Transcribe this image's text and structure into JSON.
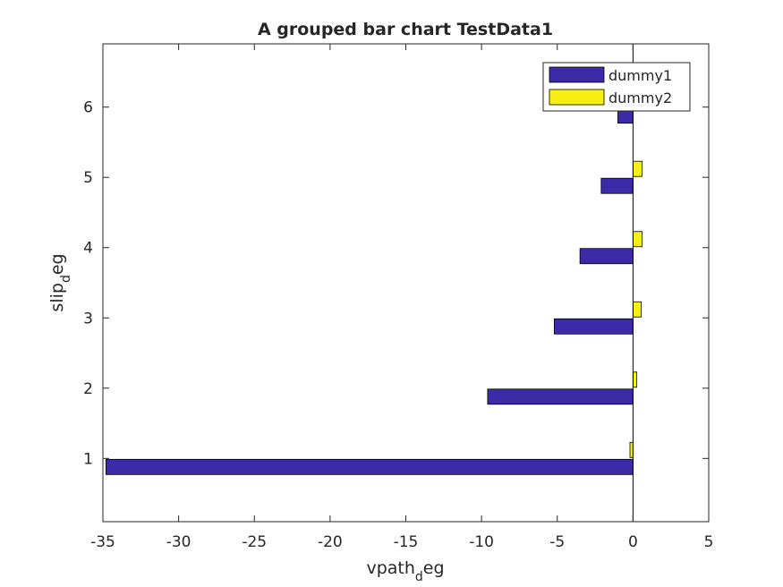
{
  "chart_data": {
    "type": "bar",
    "orientation": "horizontal",
    "title": "A grouped bar chart TestData1",
    "xlabel": {
      "main": "vpath",
      "sub": "d",
      "tail": "eg"
    },
    "ylabel": {
      "main": "slip",
      "sub": "d",
      "tail": "eg"
    },
    "xlim": [
      -35,
      5
    ],
    "ylim": [
      0.1,
      6.9
    ],
    "x_ticks": [
      -35,
      -30,
      -25,
      -20,
      -15,
      -10,
      -5,
      0,
      5
    ],
    "y_ticks": [
      1,
      2,
      3,
      4,
      5,
      6
    ],
    "categories": [
      1,
      2,
      3,
      4,
      5,
      6
    ],
    "grid": false,
    "legend_position": "top-right",
    "series": [
      {
        "name": "dummy1",
        "color": "#3c2aa8",
        "values": [
          -34.8,
          -9.6,
          -5.2,
          -3.5,
          -2.1,
          -1.0
        ]
      },
      {
        "name": "dummy2",
        "color": "#f5f011",
        "values": [
          -0.2,
          0.25,
          0.55,
          0.6,
          0.6,
          0.0
        ]
      }
    ]
  }
}
